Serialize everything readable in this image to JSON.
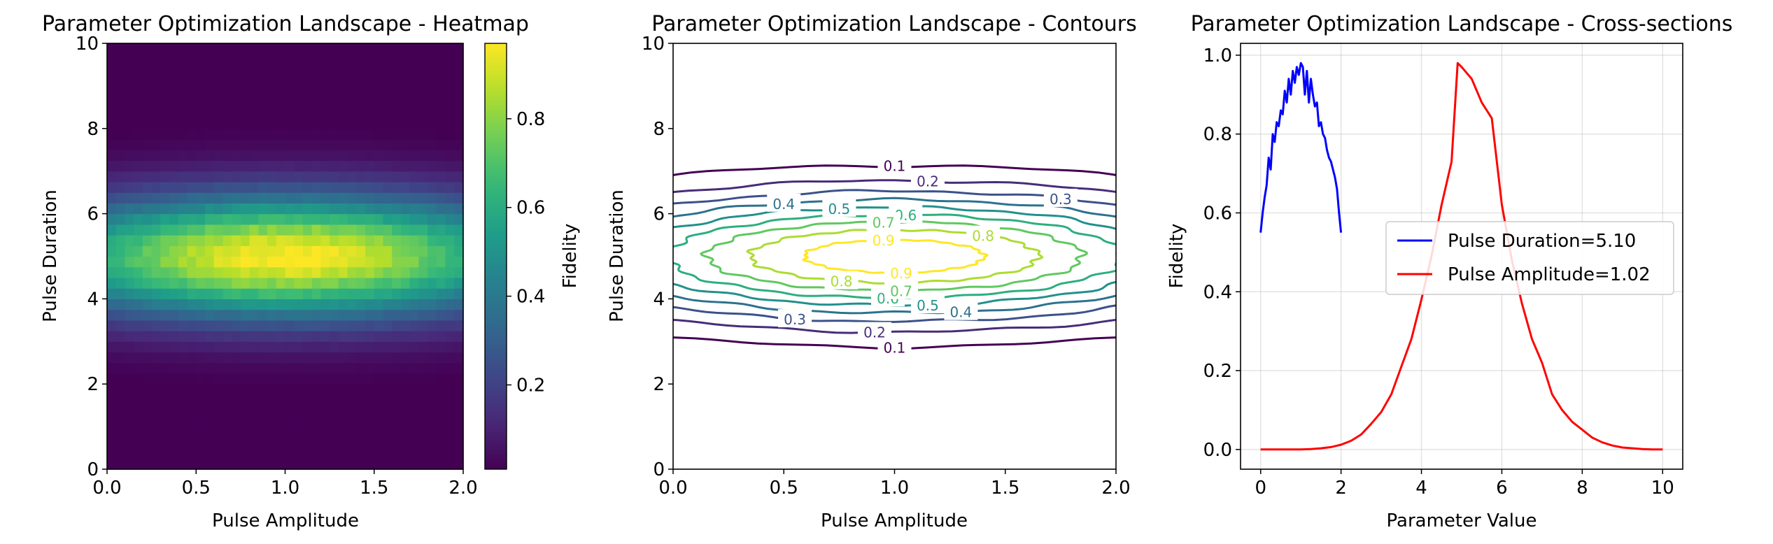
{
  "colors": {
    "viridis": [
      "#440154",
      "#482878",
      "#3e4989",
      "#31688e",
      "#26828e",
      "#1f9e89",
      "#35b779",
      "#6ece58",
      "#b5de2b",
      "#fde725"
    ],
    "cross_duration": "#0000ff",
    "cross_amplitude": "#ff0000"
  },
  "chart_data": [
    {
      "type": "heatmap",
      "title": "Parameter Optimization Landscape - Heatmap",
      "xlabel": "Pulse Amplitude",
      "ylabel": "Pulse Duration",
      "xlim": [
        0,
        2.0
      ],
      "ylim": [
        0,
        10
      ],
      "xticks": [
        "0.0",
        "0.5",
        "1.0",
        "1.5",
        "2.0"
      ],
      "yticks": [
        "0",
        "2",
        "4",
        "6",
        "8",
        "10"
      ],
      "grid": false,
      "colormap": "viridis",
      "colorbar": {
        "label": "Fidelity",
        "range": [
          0.01,
          0.97
        ],
        "ticks": [
          "0.2",
          "0.4",
          "0.6",
          "0.8"
        ]
      },
      "model": {
        "peak": 0.97,
        "center_amplitude": 1.0,
        "sigma_amplitude": 1.05,
        "center_duration": 5.0,
        "sigma_duration": 1.0,
        "nx": 40,
        "ny": 40
      }
    },
    {
      "type": "contour",
      "title": "Parameter Optimization Landscape - Contours",
      "xlabel": "Pulse Amplitude",
      "ylabel": "Pulse Duration",
      "xlim": [
        0,
        2.0
      ],
      "ylim": [
        0,
        10
      ],
      "xticks": [
        "0.0",
        "0.5",
        "1.0",
        "1.5",
        "2.0"
      ],
      "yticks": [
        "0",
        "2",
        "4",
        "6",
        "8",
        "10"
      ],
      "grid": false,
      "levels": [
        "0.1",
        "0.2",
        "0.3",
        "0.4",
        "0.5",
        "0.6",
        "0.7",
        "0.8",
        "0.9"
      ]
    },
    {
      "type": "line",
      "title": "Parameter Optimization Landscape - Cross-sections",
      "xlabel": "Parameter Value",
      "ylabel": "Fidelity",
      "xlim": [
        -0.5,
        10.5
      ],
      "ylim": [
        -0.05,
        1.03
      ],
      "xticks": [
        "0",
        "2",
        "4",
        "6",
        "8",
        "10"
      ],
      "yticks": [
        "0.0",
        "0.2",
        "0.4",
        "0.6",
        "0.8",
        "1.0"
      ],
      "grid": true,
      "legend": "center-right",
      "series": [
        {
          "name": "Pulse Duration=5.10",
          "x": [
            0,
            0.05,
            0.1,
            0.15,
            0.2,
            0.25,
            0.3,
            0.35,
            0.4,
            0.45,
            0.5,
            0.55,
            0.6,
            0.65,
            0.7,
            0.75,
            0.8,
            0.85,
            0.9,
            0.95,
            1.0,
            1.05,
            1.1,
            1.15,
            1.2,
            1.25,
            1.3,
            1.35,
            1.4,
            1.45,
            1.5,
            1.55,
            1.6,
            1.65,
            1.7,
            1.75,
            1.8,
            1.85,
            1.9,
            1.95,
            2.0
          ],
          "y": [
            0.55,
            0.6,
            0.64,
            0.67,
            0.74,
            0.71,
            0.8,
            0.78,
            0.83,
            0.82,
            0.86,
            0.85,
            0.91,
            0.88,
            0.94,
            0.9,
            0.96,
            0.93,
            0.97,
            0.95,
            0.98,
            0.97,
            0.9,
            0.96,
            0.88,
            0.94,
            0.9,
            0.87,
            0.88,
            0.82,
            0.83,
            0.8,
            0.79,
            0.76,
            0.74,
            0.73,
            0.71,
            0.69,
            0.66,
            0.6,
            0.55
          ]
        },
        {
          "name": "Pulse Amplitude=1.02",
          "x": [
            0,
            0.25,
            0.5,
            0.75,
            1.0,
            1.25,
            1.5,
            1.75,
            2.0,
            2.25,
            2.5,
            2.75,
            3.0,
            3.25,
            3.5,
            3.75,
            4.0,
            4.25,
            4.5,
            4.75,
            4.9,
            5.0,
            5.25,
            5.5,
            5.75,
            6.0,
            6.25,
            6.5,
            6.75,
            7.0,
            7.25,
            7.5,
            7.75,
            8.0,
            8.25,
            8.5,
            8.75,
            9.0,
            9.25,
            9.5,
            9.75,
            10.0
          ],
          "y": [
            0.0,
            0.0,
            0.0,
            0.0,
            0.0,
            0.001,
            0.003,
            0.006,
            0.012,
            0.022,
            0.038,
            0.065,
            0.095,
            0.14,
            0.21,
            0.28,
            0.38,
            0.49,
            0.62,
            0.73,
            0.98,
            0.97,
            0.94,
            0.88,
            0.84,
            0.62,
            0.48,
            0.37,
            0.28,
            0.22,
            0.14,
            0.1,
            0.07,
            0.05,
            0.03,
            0.018,
            0.01,
            0.005,
            0.003,
            0.001,
            0.0,
            0.0
          ]
        }
      ]
    }
  ]
}
